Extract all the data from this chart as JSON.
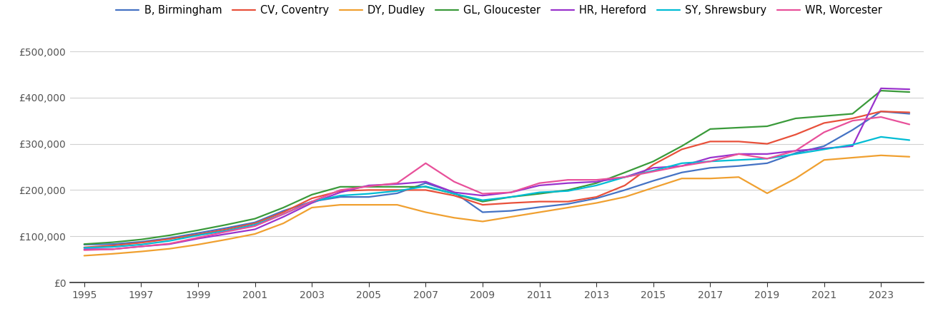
{
  "years": [
    1995,
    1996,
    1997,
    1998,
    1999,
    2000,
    2001,
    2002,
    2003,
    2004,
    2005,
    2006,
    2007,
    2008,
    2009,
    2010,
    2011,
    2012,
    2013,
    2014,
    2015,
    2016,
    2017,
    2018,
    2019,
    2020,
    2021,
    2022,
    2023,
    2024
  ],
  "series": {
    "B, Birmingham": {
      "color": "#4472c4",
      "values": [
        82000,
        83000,
        88000,
        96000,
        107000,
        118000,
        130000,
        155000,
        175000,
        185000,
        185000,
        193000,
        215000,
        195000,
        152000,
        155000,
        163000,
        170000,
        182000,
        200000,
        220000,
        238000,
        248000,
        252000,
        258000,
        280000,
        295000,
        330000,
        370000,
        365000
      ]
    },
    "CV, Coventry": {
      "color": "#e8503a",
      "values": [
        76000,
        80000,
        86000,
        94000,
        104000,
        115000,
        128000,
        152000,
        182000,
        198000,
        200000,
        200000,
        200000,
        188000,
        168000,
        172000,
        175000,
        175000,
        185000,
        210000,
        255000,
        288000,
        305000,
        305000,
        300000,
        320000,
        345000,
        355000,
        370000,
        368000
      ]
    },
    "DY, Dudley": {
      "color": "#f0a030",
      "values": [
        58000,
        62000,
        67000,
        73000,
        82000,
        93000,
        105000,
        128000,
        162000,
        168000,
        168000,
        168000,
        152000,
        140000,
        132000,
        142000,
        152000,
        162000,
        172000,
        185000,
        205000,
        225000,
        225000,
        228000,
        193000,
        225000,
        265000,
        270000,
        275000,
        272000
      ]
    },
    "GL, Gloucester": {
      "color": "#3a9a3a",
      "values": [
        83000,
        87000,
        93000,
        102000,
        113000,
        125000,
        138000,
        162000,
        190000,
        207000,
        207000,
        207000,
        207000,
        192000,
        175000,
        185000,
        192000,
        200000,
        215000,
        238000,
        262000,
        295000,
        332000,
        335000,
        338000,
        355000,
        360000,
        365000,
        415000,
        412000
      ]
    },
    "HR, Hereford": {
      "color": "#9932cc",
      "values": [
        72000,
        72000,
        78000,
        83000,
        95000,
        105000,
        115000,
        142000,
        172000,
        195000,
        210000,
        213000,
        218000,
        195000,
        188000,
        195000,
        210000,
        215000,
        218000,
        228000,
        248000,
        252000,
        270000,
        278000,
        278000,
        285000,
        290000,
        295000,
        420000,
        418000
      ]
    },
    "SY, Shrewsbury": {
      "color": "#00bcd4",
      "values": [
        75000,
        77000,
        82000,
        90000,
        102000,
        112000,
        125000,
        148000,
        175000,
        188000,
        192000,
        198000,
        208000,
        192000,
        178000,
        185000,
        195000,
        198000,
        210000,
        228000,
        242000,
        258000,
        262000,
        265000,
        268000,
        278000,
        288000,
        298000,
        315000,
        308000
      ]
    },
    "WR, Worcester": {
      "color": "#e8509a",
      "values": [
        70000,
        72000,
        78000,
        84000,
        97000,
        110000,
        122000,
        148000,
        175000,
        200000,
        208000,
        215000,
        258000,
        218000,
        192000,
        195000,
        215000,
        222000,
        222000,
        228000,
        240000,
        252000,
        262000,
        278000,
        268000,
        285000,
        325000,
        350000,
        358000,
        342000
      ]
    }
  },
  "ylim": [
    0,
    500000
  ],
  "yticks": [
    0,
    100000,
    200000,
    300000,
    400000,
    500000
  ],
  "ytick_labels": [
    "£0",
    "£100,000",
    "£200,000",
    "£300,000",
    "£400,000",
    "£500,000"
  ],
  "xtick_years": [
    1995,
    1997,
    1999,
    2001,
    2003,
    2005,
    2007,
    2009,
    2011,
    2013,
    2015,
    2017,
    2019,
    2021,
    2023
  ],
  "xlim_min": 1994.5,
  "xlim_max": 2024.5,
  "background_color": "#ffffff",
  "grid_color": "#d0d0d0",
  "tick_color": "#555555",
  "spine_color": "#333333",
  "line_width": 1.6,
  "font_size_ticks": 10,
  "font_size_legend": 10.5,
  "legend_handlelength": 2.2,
  "legend_columnspacing": 1.0,
  "legend_handletextpad": 0.5
}
